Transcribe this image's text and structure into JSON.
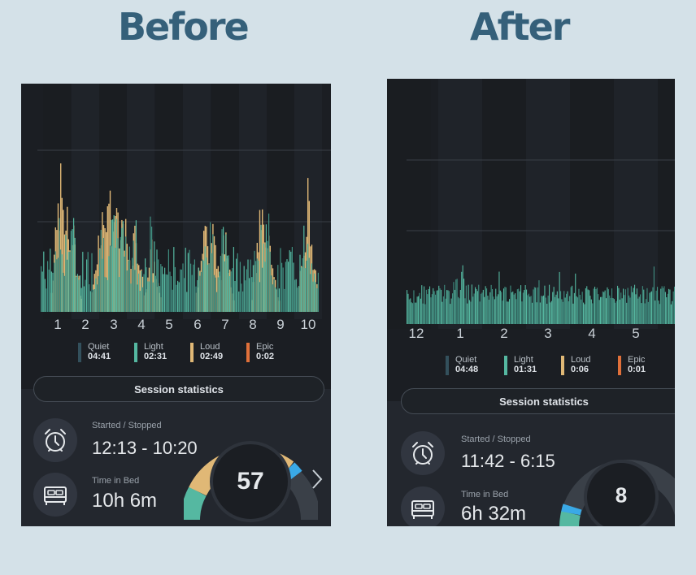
{
  "headings": {
    "before": "Before",
    "after": "After"
  },
  "colors": {
    "quiet": "#33505c",
    "light": "#55b8a1",
    "loud": "#e0b876",
    "epic": "#e0703a",
    "gauge_bg": "#3a4048",
    "gauge_blue": "#3aa9e6",
    "background": "#d4e1e8",
    "phone_bg": "#1b1e23"
  },
  "before": {
    "chart_data": {
      "type": "bar",
      "title": "",
      "xlabel": "",
      "ylabel": "",
      "x_ticks": [
        "1",
        "2",
        "3",
        "4",
        "5",
        "6",
        "7",
        "8",
        "9",
        "10"
      ],
      "series": [
        {
          "name": "Loud",
          "color": "#e0b876"
        },
        {
          "name": "Light",
          "color": "#55b8a1"
        }
      ],
      "ylim": [
        0,
        1
      ]
    },
    "legend": [
      {
        "label": "Quiet",
        "value": "04:41",
        "color": "#33505c"
      },
      {
        "label": "Light",
        "value": "02:31",
        "color": "#55b8a1"
      },
      {
        "label": "Loud",
        "value": "02:49",
        "color": "#e0b876"
      },
      {
        "label": "Epic",
        "value": "0:02",
        "color": "#e0703a"
      }
    ],
    "session_title": "Session statistics",
    "started_stopped_label": "Started / Stopped",
    "started_stopped_value": "12:13 - 10:20",
    "time_in_bed_label": "Time in Bed",
    "time_in_bed_value": "10h 6m",
    "score": "57",
    "icons": {
      "alarm": "alarm-clock-icon",
      "bed": "bed-icon",
      "next": "chevron-right-icon"
    }
  },
  "after": {
    "chart_data": {
      "type": "bar",
      "title": "",
      "xlabel": "",
      "ylabel": "",
      "x_ticks": [
        "12",
        "1",
        "2",
        "3",
        "4",
        "5"
      ],
      "series": [
        {
          "name": "Light",
          "color": "#55b8a1"
        }
      ],
      "ylim": [
        0,
        1
      ]
    },
    "legend": [
      {
        "label": "Quiet",
        "value": "04:48",
        "color": "#33505c"
      },
      {
        "label": "Light",
        "value": "01:31",
        "color": "#55b8a1"
      },
      {
        "label": "Loud",
        "value": "0:06",
        "color": "#e0b876"
      },
      {
        "label": "Epic",
        "value": "0:01",
        "color": "#e0703a"
      }
    ],
    "session_title": "Session statistics",
    "started_stopped_label": "Started / Stopped",
    "started_stopped_value": "11:42 - 6:15",
    "time_in_bed_label": "Time in Bed",
    "time_in_bed_value": "6h 32m",
    "score": "8",
    "icons": {
      "alarm": "alarm-clock-icon",
      "bed": "bed-icon"
    }
  }
}
